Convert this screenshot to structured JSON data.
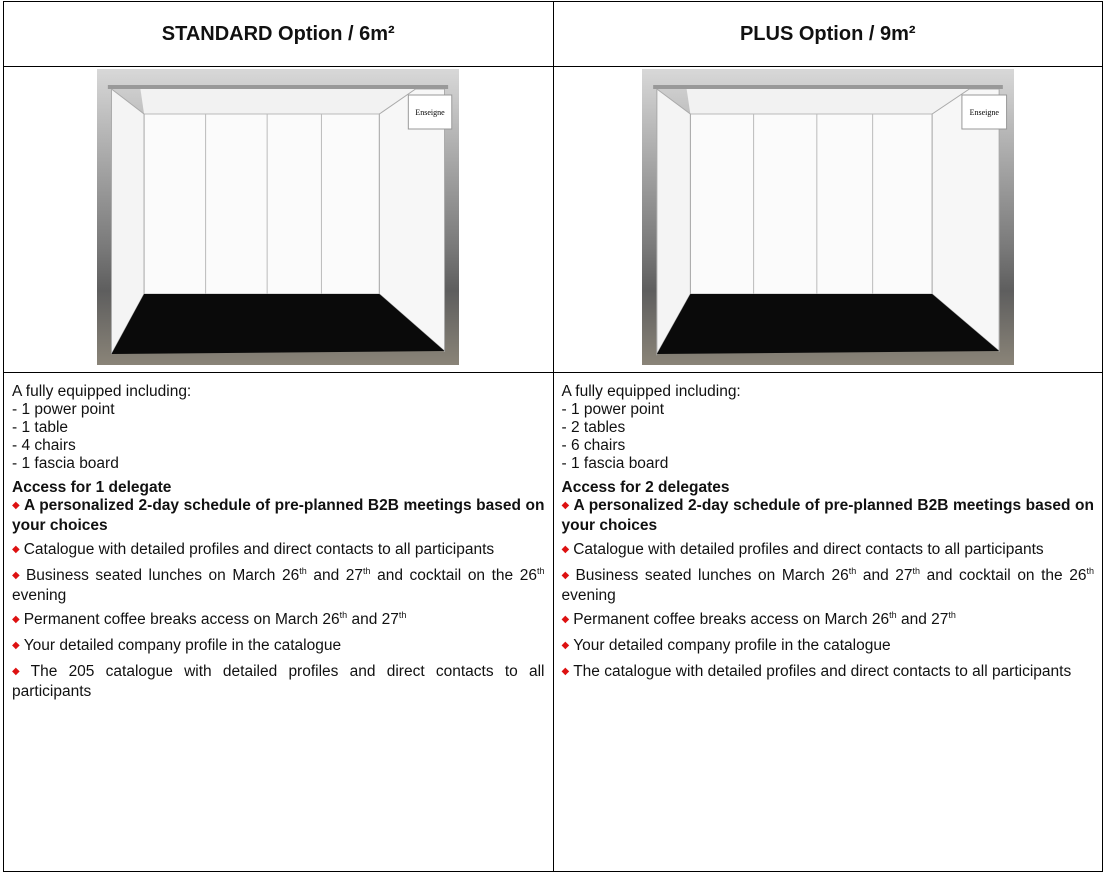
{
  "columns": [
    {
      "title": "STANDARD Option / 6m²",
      "intro": "A fully equipped including:",
      "equipment": [
        "- 1 power point",
        "- 1 table",
        "- 4 chairs",
        "- 1 fascia board"
      ],
      "access": "Access for 1 delegate",
      "highlight": "A personalized 2-day schedule of pre-planned B2B meetings based on your choices",
      "benefits": [
        [
          "Catalogue with detailed profiles and direct contacts to all participants"
        ],
        [
          "Business seated lunches on March 26",
          "th",
          " and 27",
          "th",
          " and cocktail on the 26",
          "th",
          " evening"
        ],
        [
          "Permanent coffee breaks access on March 26",
          "th",
          " and 27",
          "th"
        ],
        [
          "Your detailed company profile in the catalogue"
        ],
        [
          "The 205 catalogue with detailed profiles and direct contacts to all participants"
        ]
      ],
      "sign": "Enseigne"
    },
    {
      "title": "PLUS Option / 9m²",
      "intro": "A fully equipped including:",
      "equipment": [
        "- 1 power point",
        "- 2 tables",
        "- 6 chairs",
        "- 1 fascia board"
      ],
      "access": "Access for 2 delegates",
      "highlight": "A personalized 2-day schedule of pre-planned B2B meetings based on your choices",
      "benefits": [
        [
          "Catalogue with detailed profiles and direct contacts to all participants"
        ],
        [
          "Business seated lunches on March 26",
          "th",
          " and 27",
          "th",
          " and cocktail on the 26",
          "th",
          " evening"
        ],
        [
          "Permanent coffee breaks access on March 26",
          "th",
          " and 27",
          "th"
        ],
        [
          "Your detailed company profile in the catalogue"
        ],
        [
          "The catalogue with detailed profiles and direct contacts to all participants"
        ]
      ],
      "sign": "Enseigne"
    }
  ]
}
